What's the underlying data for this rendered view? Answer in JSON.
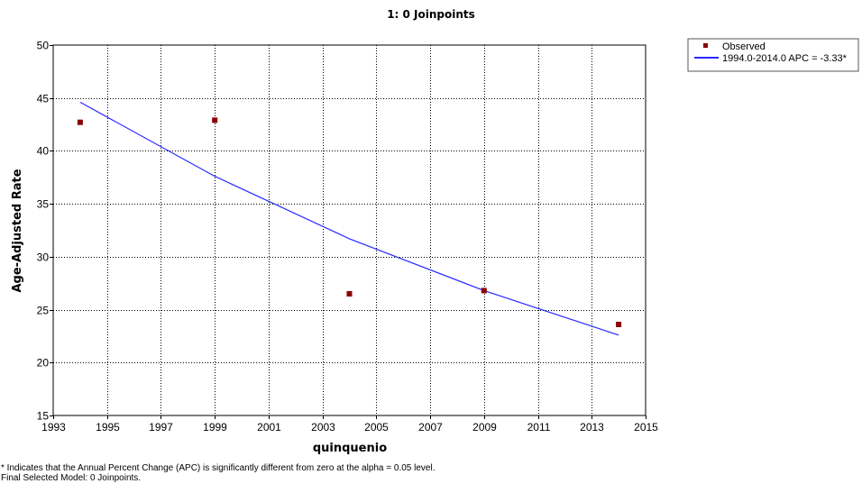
{
  "chart_data": {
    "type": "scatter",
    "title": "1: 0 Joinpoints",
    "xlabel": "quinquenio",
    "ylabel": "Age-Adjusted Rate",
    "xlim": [
      1993,
      2015
    ],
    "ylim": [
      15,
      50
    ],
    "x_ticks": [
      1993,
      1995,
      1997,
      1999,
      2001,
      2003,
      2005,
      2007,
      2009,
      2011,
      2013,
      2015
    ],
    "y_ticks": [
      15,
      20,
      25,
      30,
      35,
      40,
      45,
      50
    ],
    "grid": true,
    "legend_position": "top-right, outside plot",
    "series": [
      {
        "name": "Observed",
        "kind": "points",
        "marker": "square",
        "color": "#8b0000",
        "x": [
          1994,
          1999,
          2004,
          2009,
          2014
        ],
        "y": [
          42.7,
          42.9,
          26.5,
          26.8,
          23.6
        ]
      },
      {
        "name": "1994.0-2014.0 APC  = -3.33*",
        "kind": "line",
        "color": "#2828ff",
        "x": [
          1994,
          1999,
          2004,
          2009,
          2014
        ],
        "y": [
          44.6,
          37.6,
          31.7,
          26.8,
          22.6
        ]
      }
    ]
  },
  "footnotes": {
    "significance": "* Indicates that the Annual Percent Change (APC) is significantly different from zero at the alpha = 0.05 level.",
    "final_model": "Final Selected Model: 0 Joinpoints."
  }
}
